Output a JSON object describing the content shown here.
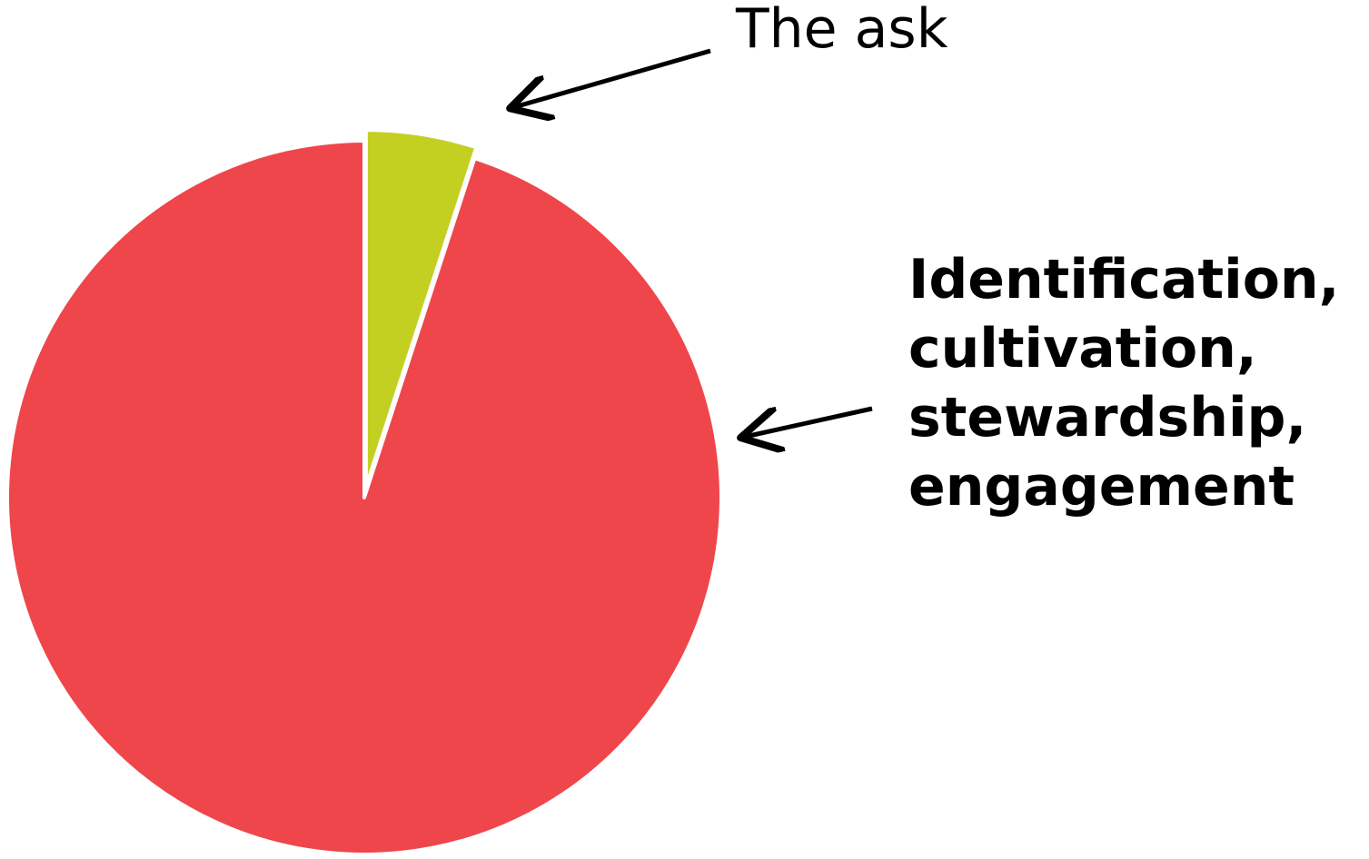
{
  "chart_data": {
    "type": "pie",
    "slices": [
      {
        "label": "The ask",
        "value": 5,
        "color": "#c3d022",
        "exploded": true
      },
      {
        "label_lines": [
          "Identification,",
          "cultivation,",
          "stewardship,",
          "engagement"
        ],
        "value": 95,
        "color": "#ef464b",
        "exploded": false
      }
    ],
    "start_angle": "12 o'clock",
    "direction": "clockwise",
    "legend": "none",
    "labels": "callouts with arrows"
  }
}
